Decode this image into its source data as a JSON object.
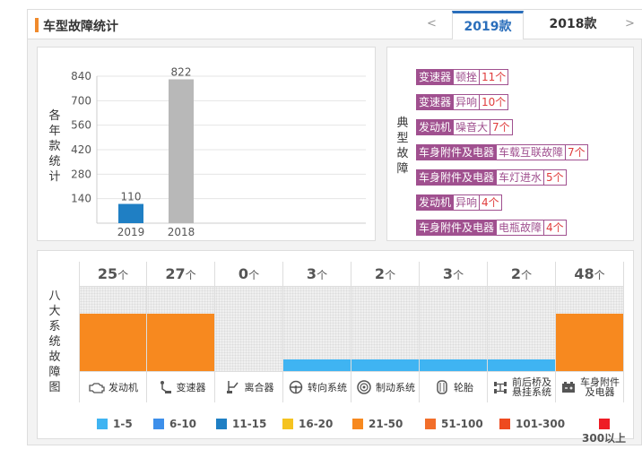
{
  "header": {
    "title": "车型故障统计",
    "prev": "<",
    "next": ">",
    "tabs": [
      {
        "label": "2019款",
        "active": true
      },
      {
        "label": "2018款",
        "active": false
      }
    ]
  },
  "chart_data": {
    "type": "bar",
    "categories": [
      "2019",
      "2018"
    ],
    "values": [
      110,
      822
    ],
    "ylabel": "各年款统计",
    "yticks": [
      140,
      280,
      420,
      560,
      700,
      840
    ],
    "ylim": [
      0,
      840
    ],
    "colors": [
      "#1f7fc4",
      "#b8b8b8"
    ]
  },
  "typical": {
    "label": "典型故障",
    "items": [
      {
        "system": "变速器",
        "fault": "顿挫",
        "count": "11个"
      },
      {
        "system": "变速器",
        "fault": "异响",
        "count": "10个"
      },
      {
        "system": "发动机",
        "fault": "噪音大",
        "count": "7个"
      },
      {
        "system": "车身附件及电器",
        "fault": "车载互联故障",
        "count": "7个"
      },
      {
        "system": "车身附件及电器",
        "fault": "车灯进水",
        "count": "5个"
      },
      {
        "system": "发动机",
        "fault": "异响",
        "count": "4个"
      },
      {
        "system": "车身附件及电器",
        "fault": "电瓶故障",
        "count": "4个"
      }
    ]
  },
  "systems": {
    "label": "八大系统故障图",
    "unit": "个",
    "items": [
      {
        "name": "发动机",
        "count": "25",
        "level": 0.68,
        "color": "#f7891f",
        "icon": "engine-icon"
      },
      {
        "name": "变速器",
        "count": "27",
        "level": 0.68,
        "color": "#f7891f",
        "icon": "gearshift-icon"
      },
      {
        "name": "离合器",
        "count": "0",
        "level": 0,
        "color": "#f7891f",
        "icon": "clutch-icon"
      },
      {
        "name": "转向系统",
        "count": "3",
        "level": 0.14,
        "color": "#3fb4f2",
        "icon": "steering-wheel-icon"
      },
      {
        "name": "制动系统",
        "count": "2",
        "level": 0.14,
        "color": "#3fb4f2",
        "icon": "brake-disc-icon"
      },
      {
        "name": "轮胎",
        "count": "3",
        "level": 0.14,
        "color": "#3fb4f2",
        "icon": "tire-icon"
      },
      {
        "name": "前后桥及\n悬挂系统",
        "count": "2",
        "level": 0.14,
        "color": "#3fb4f2",
        "icon": "axle-icon"
      },
      {
        "name": "车身附件\n及电器",
        "count": "48",
        "level": 0.68,
        "color": "#f7891f",
        "icon": "battery-icon"
      }
    ]
  },
  "legend": [
    {
      "label": "1-5",
      "color": "#3fb4f2"
    },
    {
      "label": "6-10",
      "color": "#3d8fea"
    },
    {
      "label": "11-15",
      "color": "#1f7fc4"
    },
    {
      "label": "16-20",
      "color": "#f5c320"
    },
    {
      "label": "21-50",
      "color": "#f7891f"
    },
    {
      "label": "51-100",
      "color": "#f26e2a"
    },
    {
      "label": "101-300",
      "color": "#ee4a1f"
    },
    {
      "label": "300以上",
      "color": "#ee1c25"
    }
  ]
}
